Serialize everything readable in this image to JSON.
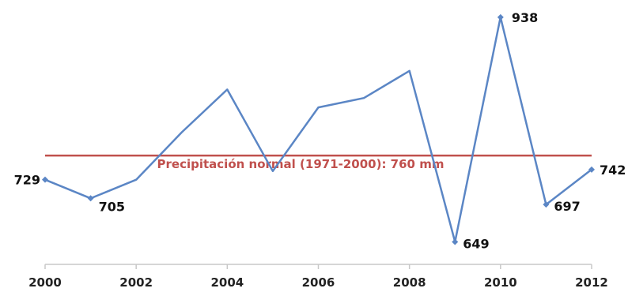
{
  "chart_data": {
    "type": "line",
    "title": "",
    "xlabel": "",
    "ylabel": "",
    "x": [
      2000,
      2001,
      2002,
      2003,
      2004,
      2005,
      2006,
      2007,
      2008,
      2009,
      2010,
      2011,
      2012
    ],
    "series": [
      {
        "values": [
          729,
          705,
          729,
          790,
          845,
          740,
          822,
          834,
          869,
          649,
          938,
          697,
          742
        ],
        "color": "#5b86c5"
      }
    ],
    "data_labels": [
      {
        "x": 2000,
        "y": 729,
        "text": "729"
      },
      {
        "x": 2001,
        "y": 705,
        "text": "705"
      },
      {
        "x": 2009,
        "y": 649,
        "text": "649"
      },
      {
        "x": 2010,
        "y": 938,
        "text": "938"
      },
      {
        "x": 2011,
        "y": 697,
        "text": "697"
      },
      {
        "x": 2012,
        "y": 742,
        "text": "742"
      }
    ],
    "marker_points": [
      2000,
      2001,
      2009,
      2010,
      2011,
      2012
    ],
    "x_ticks": [
      "2000",
      "2002",
      "2004",
      "2006",
      "2008",
      "2010",
      "2012"
    ],
    "x_range": [
      2000,
      2012
    ],
    "y_range": [
      620,
      950
    ],
    "grid": false,
    "reference_line": {
      "value": 760,
      "label": "Precipitación normal (1971-2000): 760 mm",
      "color": "#c0504d"
    },
    "axis_color": "#c8c8c8"
  }
}
